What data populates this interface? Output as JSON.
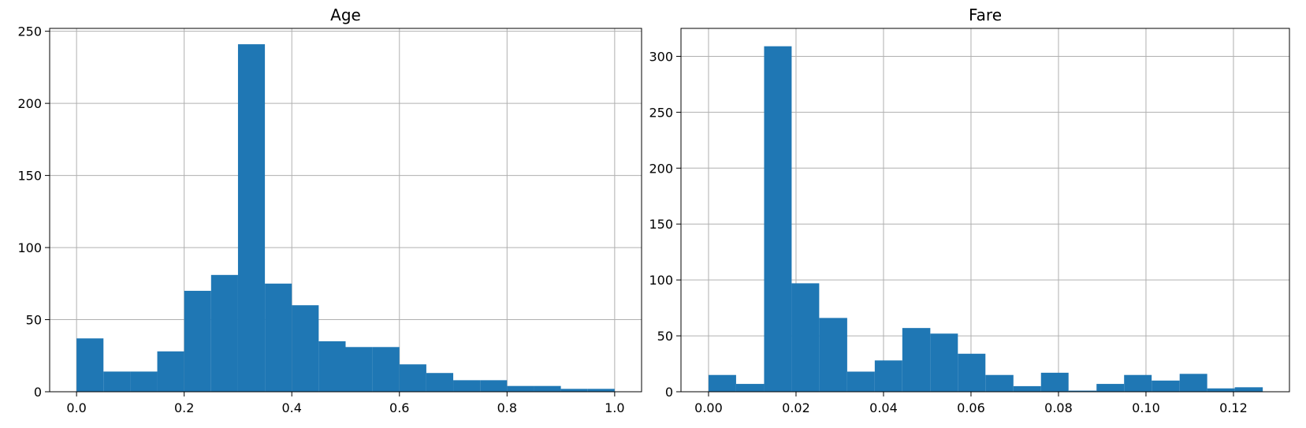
{
  "chart_data": [
    {
      "type": "histogram",
      "title": "Age",
      "xlabel": "",
      "ylabel": "",
      "xlim": [
        -0.05,
        1.05
      ],
      "ylim": [
        0,
        252
      ],
      "xticks": [
        0.0,
        0.2,
        0.4,
        0.6,
        0.8,
        1.0
      ],
      "xtick_labels": [
        "0.0",
        "0.2",
        "0.4",
        "0.6",
        "0.8",
        "1.0"
      ],
      "yticks": [
        0,
        50,
        100,
        150,
        200,
        250
      ],
      "ytick_labels": [
        "0",
        "50",
        "100",
        "150",
        "200",
        "250"
      ],
      "grid": true,
      "color": "#1f77b4",
      "bins": [
        {
          "x0": 0.0,
          "x1": 0.05,
          "count": 37
        },
        {
          "x0": 0.05,
          "x1": 0.1,
          "count": 14
        },
        {
          "x0": 0.1,
          "x1": 0.15,
          "count": 14
        },
        {
          "x0": 0.15,
          "x1": 0.2,
          "count": 28
        },
        {
          "x0": 0.2,
          "x1": 0.25,
          "count": 70
        },
        {
          "x0": 0.25,
          "x1": 0.3,
          "count": 81
        },
        {
          "x0": 0.3,
          "x1": 0.35,
          "count": 241
        },
        {
          "x0": 0.35,
          "x1": 0.4,
          "count": 75
        },
        {
          "x0": 0.4,
          "x1": 0.45,
          "count": 60
        },
        {
          "x0": 0.45,
          "x1": 0.5,
          "count": 35
        },
        {
          "x0": 0.5,
          "x1": 0.55,
          "count": 31
        },
        {
          "x0": 0.55,
          "x1": 0.6,
          "count": 31
        },
        {
          "x0": 0.6,
          "x1": 0.65,
          "count": 19
        },
        {
          "x0": 0.65,
          "x1": 0.7,
          "count": 13
        },
        {
          "x0": 0.7,
          "x1": 0.75,
          "count": 8
        },
        {
          "x0": 0.75,
          "x1": 0.8,
          "count": 8
        },
        {
          "x0": 0.8,
          "x1": 0.85,
          "count": 4
        },
        {
          "x0": 0.85,
          "x1": 0.9,
          "count": 4
        },
        {
          "x0": 0.9,
          "x1": 0.95,
          "count": 2
        },
        {
          "x0": 0.95,
          "x1": 1.0,
          "count": 2
        }
      ]
    },
    {
      "type": "histogram",
      "title": "Fare",
      "xlabel": "",
      "ylabel": "",
      "xlim": [
        -0.0063,
        0.1328
      ],
      "ylim": [
        0,
        325
      ],
      "xticks": [
        0.0,
        0.02,
        0.04,
        0.06,
        0.08,
        0.1,
        0.12
      ],
      "xtick_labels": [
        "0.00",
        "0.02",
        "0.04",
        "0.06",
        "0.08",
        "0.10",
        "0.12"
      ],
      "yticks": [
        0,
        50,
        100,
        150,
        200,
        250,
        300
      ],
      "ytick_labels": [
        "0",
        "50",
        "100",
        "150",
        "200",
        "250",
        "300"
      ],
      "grid": true,
      "color": "#1f77b4",
      "bins": [
        {
          "x0": 0.0,
          "x1": 0.0063,
          "count": 15
        },
        {
          "x0": 0.0063,
          "x1": 0.0127,
          "count": 7
        },
        {
          "x0": 0.0127,
          "x1": 0.019,
          "count": 309
        },
        {
          "x0": 0.019,
          "x1": 0.0253,
          "count": 97
        },
        {
          "x0": 0.0253,
          "x1": 0.0317,
          "count": 66
        },
        {
          "x0": 0.0317,
          "x1": 0.038,
          "count": 18
        },
        {
          "x0": 0.038,
          "x1": 0.0443,
          "count": 28
        },
        {
          "x0": 0.0443,
          "x1": 0.0507,
          "count": 57
        },
        {
          "x0": 0.0507,
          "x1": 0.057,
          "count": 52
        },
        {
          "x0": 0.057,
          "x1": 0.0633,
          "count": 34
        },
        {
          "x0": 0.0633,
          "x1": 0.0697,
          "count": 15
        },
        {
          "x0": 0.0697,
          "x1": 0.076,
          "count": 5
        },
        {
          "x0": 0.076,
          "x1": 0.0823,
          "count": 17
        },
        {
          "x0": 0.0823,
          "x1": 0.0887,
          "count": 1
        },
        {
          "x0": 0.0887,
          "x1": 0.095,
          "count": 7
        },
        {
          "x0": 0.095,
          "x1": 0.1013,
          "count": 15
        },
        {
          "x0": 0.1013,
          "x1": 0.1077,
          "count": 10
        },
        {
          "x0": 0.1077,
          "x1": 0.114,
          "count": 16
        },
        {
          "x0": 0.114,
          "x1": 0.1203,
          "count": 3
        },
        {
          "x0": 0.1203,
          "x1": 0.1267,
          "count": 4
        }
      ]
    }
  ]
}
